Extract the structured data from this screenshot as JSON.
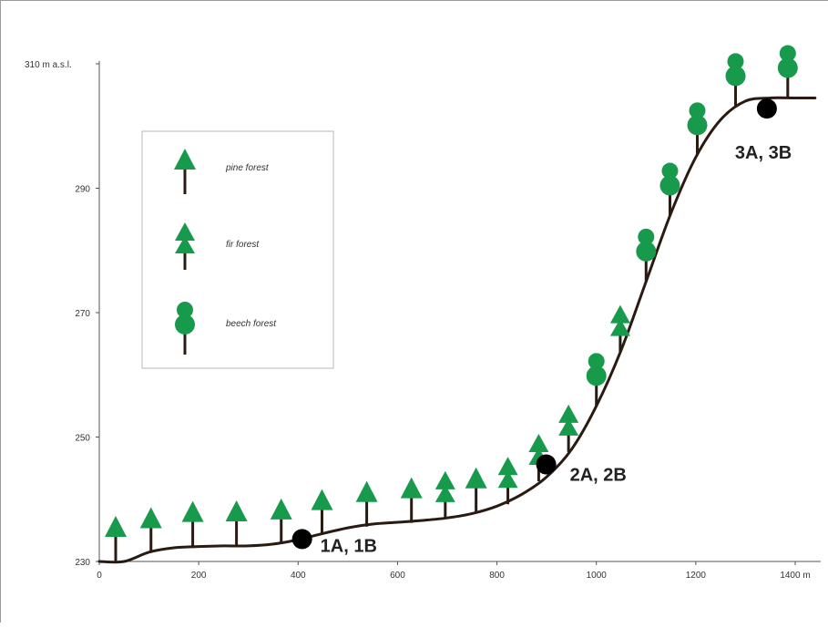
{
  "chart_data": {
    "type": "line",
    "x_ticks": [
      "0",
      "200",
      "400",
      "600",
      "800",
      "1000",
      "1200",
      "1400 m"
    ],
    "y_ticks": [
      "230",
      "250",
      "270",
      "290",
      "310 m a.s.l."
    ],
    "xlim": [
      0,
      1420
    ],
    "ylim": [
      230,
      310
    ],
    "series": [
      {
        "x": [
          0,
          50,
          100,
          150,
          200,
          250,
          300,
          350,
          400,
          450,
          500,
          550,
          600,
          650,
          700,
          750,
          800,
          850,
          900,
          950,
          1000,
          1050,
          1100,
          1150,
          1200,
          1250,
          1300,
          1350,
          1400,
          1440
        ],
        "y": [
          230,
          230,
          231.5,
          232.2,
          232.4,
          232.5,
          232.5,
          232.8,
          233.5,
          234.5,
          235.4,
          236,
          236.3,
          236.6,
          237,
          237.7,
          238.9,
          240.8,
          243.6,
          248,
          255,
          264,
          275,
          286,
          295,
          301,
          304,
          304.5,
          304.5,
          304.5
        ]
      }
    ],
    "sites": [
      {
        "label": "1A, 1B",
        "x": 408,
        "y": 233.6
      },
      {
        "label": "2A, 2B",
        "x": 899,
        "y": 245.6
      },
      {
        "label": "3A, 3B",
        "x": 1343,
        "y": 302.8
      }
    ],
    "trees": [
      {
        "type": "pine",
        "x": 33,
        "y": 230
      },
      {
        "type": "pine",
        "x": 104,
        "y": 231.4
      },
      {
        "type": "pine",
        "x": 188,
        "y": 232.4
      },
      {
        "type": "pine",
        "x": 276,
        "y": 232.5
      },
      {
        "type": "pine",
        "x": 366,
        "y": 232.8
      },
      {
        "type": "pine",
        "x": 448,
        "y": 234.3
      },
      {
        "type": "pine",
        "x": 538,
        "y": 235.6
      },
      {
        "type": "pine",
        "x": 628,
        "y": 236.2
      },
      {
        "type": "fir",
        "x": 696,
        "y": 236.9
      },
      {
        "type": "pine",
        "x": 758,
        "y": 237.8
      },
      {
        "type": "fir",
        "x": 822,
        "y": 239.2
      },
      {
        "type": "fir",
        "x": 884,
        "y": 242.9
      },
      {
        "type": "fir",
        "x": 944,
        "y": 247.6
      },
      {
        "type": "beech",
        "x": 1000,
        "y": 255
      },
      {
        "type": "fir",
        "x": 1048,
        "y": 263.6
      },
      {
        "type": "beech",
        "x": 1100,
        "y": 275
      },
      {
        "type": "beech",
        "x": 1148,
        "y": 285.6
      },
      {
        "type": "beech",
        "x": 1203,
        "y": 295.3
      },
      {
        "type": "beech",
        "x": 1280,
        "y": 303.2
      },
      {
        "type": "beech",
        "x": 1385,
        "y": 304.5
      }
    ],
    "legend": [
      {
        "type": "pine",
        "label": "pine forest"
      },
      {
        "type": "fir",
        "label": "fir forest"
      },
      {
        "type": "beech",
        "label": "beech forest"
      }
    ],
    "title": "",
    "xlabel": "",
    "ylabel": "",
    "grid": false,
    "legend_placement": "upper-left",
    "colors": {
      "line": "#2a1b12",
      "tree_green": "#189a4c",
      "trunk": "#2a1b12",
      "site_marker": "#000000",
      "axis": "#555555"
    }
  }
}
